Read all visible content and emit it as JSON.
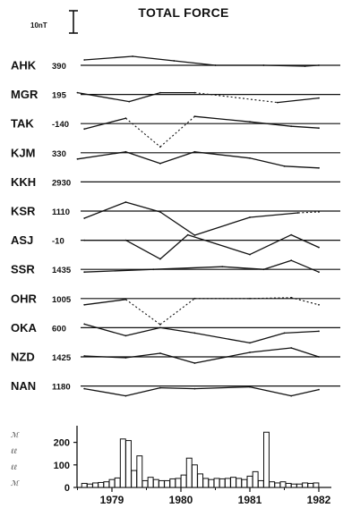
{
  "chart_data": [
    {
      "type": "line",
      "title": "TOTAL FORCE",
      "scale_bar": "10nT",
      "x_years": [
        "1979",
        "1980",
        "1981",
        "1982"
      ],
      "dash_style_note": "",
      "series": [
        {
          "name": "AHK",
          "baseline": "390",
          "x": [
            1978.6,
            1979.3,
            1979.9,
            1980.5,
            1981.2,
            1981.8,
            1982.0
          ],
          "y": [
            6,
            10,
            5,
            0,
            0,
            -1,
            0
          ],
          "dashed": []
        },
        {
          "name": "MGR",
          "baseline": "195",
          "x": [
            1978.5,
            1979.25,
            1979.7,
            1980.2,
            1981.4,
            1982.0
          ],
          "y": [
            2,
            -8,
            2,
            2,
            -9,
            -4
          ],
          "dashed": [
            3
          ]
        },
        {
          "name": "TAK",
          "baseline": "-140",
          "x": [
            1978.6,
            1979.2,
            1979.7,
            1980.2,
            1981.0,
            1981.6,
            1982.0
          ],
          "y": [
            -6,
            6,
            -26,
            8,
            2,
            -3,
            -5
          ],
          "dashed": [
            1,
            2
          ]
        },
        {
          "name": "KJM",
          "baseline": "330",
          "x": [
            1978.5,
            1979.2,
            1979.7,
            1980.2,
            1981.0,
            1981.5,
            1982.0
          ],
          "y": [
            -7,
            1,
            -12,
            1,
            -6,
            -15,
            -17
          ],
          "dashed": []
        },
        {
          "name": "KKH",
          "baseline": "2930",
          "x": [],
          "y": [],
          "dashed": []
        },
        {
          "name": "KSR",
          "baseline": "1110",
          "x": [
            1978.6,
            1979.2,
            1979.7,
            1980.2,
            1981.0,
            1981.7,
            1982.0
          ],
          "y": [
            -8,
            10,
            -1,
            -27,
            -7,
            -2,
            -1
          ],
          "dashed": [
            5
          ]
        },
        {
          "name": "ASJ",
          "baseline": "-10",
          "x": [
            1978.6,
            1979.2,
            1979.7,
            1980.1,
            1981.0,
            1981.6,
            1982.0
          ],
          "y": [
            0,
            0,
            -21,
            6,
            -16,
            6,
            -8
          ],
          "dashed": []
        },
        {
          "name": "SSR",
          "baseline": "1435",
          "x": [
            1978.6,
            1979.6,
            1980.6,
            1981.2,
            1981.6,
            1982.0
          ],
          "y": [
            -3,
            0,
            3,
            0,
            10,
            -3
          ],
          "dashed": []
        },
        {
          "name": "OHR",
          "baseline": "1005",
          "x": [
            1978.6,
            1979.2,
            1979.7,
            1980.2,
            1981.0,
            1981.6,
            1982.0
          ],
          "y": [
            -7,
            -1,
            -29,
            0,
            0,
            1,
            -7
          ],
          "dashed": [
            1,
            2,
            3,
            4,
            5
          ]
        },
        {
          "name": "OKA",
          "baseline": "600",
          "x": [
            1978.6,
            1979.2,
            1979.7,
            1980.2,
            1981.0,
            1981.5,
            1982.0
          ],
          "y": [
            4,
            -9,
            0,
            -6,
            -17,
            -6,
            -4
          ],
          "dashed": []
        },
        {
          "name": "NZD",
          "baseline": "1425",
          "x": [
            1978.6,
            1979.2,
            1979.7,
            1980.2,
            1981.0,
            1981.6,
            1982.0
          ],
          "y": [
            1,
            -1,
            4,
            -7,
            5,
            10,
            0
          ],
          "dashed": []
        },
        {
          "name": "NAN",
          "baseline": "1180",
          "x": [
            1978.6,
            1979.2,
            1979.7,
            1980.2,
            1981.0,
            1981.6,
            1982.0
          ],
          "y": [
            -3,
            -11,
            -2,
            -3,
            -1,
            -11,
            -4
          ],
          "dashed": []
        }
      ]
    },
    {
      "type": "bar",
      "ylim": [
        0,
        250
      ],
      "yticks": [
        "200",
        "100",
        "0"
      ],
      "ylabel_glyphs": [
        "ℳ",
        "ℓℓ",
        "ℓℓ",
        "ℳ"
      ],
      "xticks": [
        "1979",
        "1980",
        "1981",
        "1982"
      ],
      "bar_width_years": 0.077,
      "bars": {
        "x": [
          1978.6,
          1978.68,
          1978.76,
          1978.84,
          1978.92,
          1979.0,
          1979.08,
          1979.16,
          1979.24,
          1979.32,
          1979.4,
          1979.48,
          1979.56,
          1979.64,
          1979.72,
          1979.8,
          1979.88,
          1979.96,
          1980.04,
          1980.12,
          1980.2,
          1980.28,
          1980.36,
          1980.44,
          1980.52,
          1980.6,
          1980.68,
          1980.76,
          1980.84,
          1980.92,
          1981.0,
          1981.08,
          1981.16,
          1981.24,
          1981.32,
          1981.4,
          1981.48,
          1981.56,
          1981.64,
          1981.72,
          1981.8,
          1981.88,
          1981.96
        ],
        "values": [
          18,
          15,
          20,
          22,
          25,
          35,
          42,
          215,
          208,
          75,
          140,
          30,
          45,
          35,
          30,
          30,
          38,
          40,
          55,
          130,
          100,
          60,
          40,
          35,
          40,
          38,
          40,
          45,
          40,
          35,
          50,
          70,
          30,
          245,
          25,
          20,
          25,
          18,
          15,
          15,
          20,
          18,
          20
        ]
      }
    }
  ]
}
